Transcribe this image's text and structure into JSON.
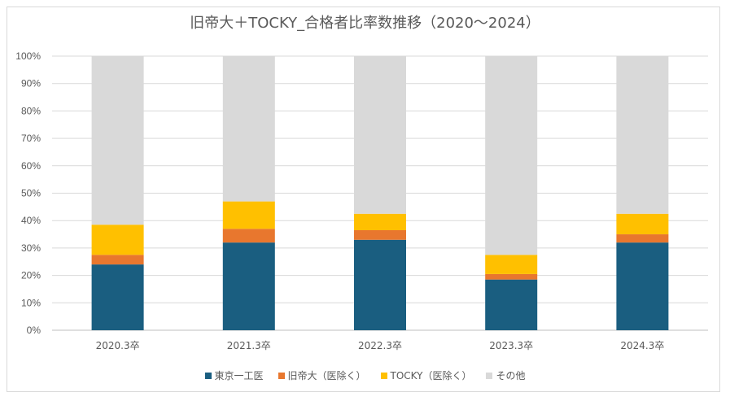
{
  "chart_data": {
    "type": "bar",
    "stacked": true,
    "title": "旧帝大＋TOCKY_合格者比率数推移（2020～2024）",
    "categories": [
      "2020.3卒",
      "2021.3卒",
      "2022.3卒",
      "2023.3卒",
      "2024.3卒"
    ],
    "series": [
      {
        "name": "東京一工医",
        "color": "#1a5e80",
        "values": [
          0.24,
          0.32,
          0.33,
          0.185,
          0.32
        ]
      },
      {
        "name": "旧帝大（医除く）",
        "color": "#e8772e",
        "values": [
          0.035,
          0.05,
          0.035,
          0.02,
          0.03
        ]
      },
      {
        "name": "TOCKY（医除く）",
        "color": "#ffc000",
        "values": [
          0.11,
          0.1,
          0.06,
          0.07,
          0.075
        ]
      },
      {
        "name": "その他",
        "color": "#d9d9d9",
        "values": [
          0.615,
          0.53,
          0.575,
          0.725,
          0.575
        ]
      }
    ],
    "ylim": [
      0,
      1
    ],
    "yticks": [
      "0%",
      "10%",
      "20%",
      "30%",
      "40%",
      "50%",
      "60%",
      "70%",
      "80%",
      "90%",
      "100%"
    ],
    "grid": true,
    "legend_position": "bottom"
  }
}
